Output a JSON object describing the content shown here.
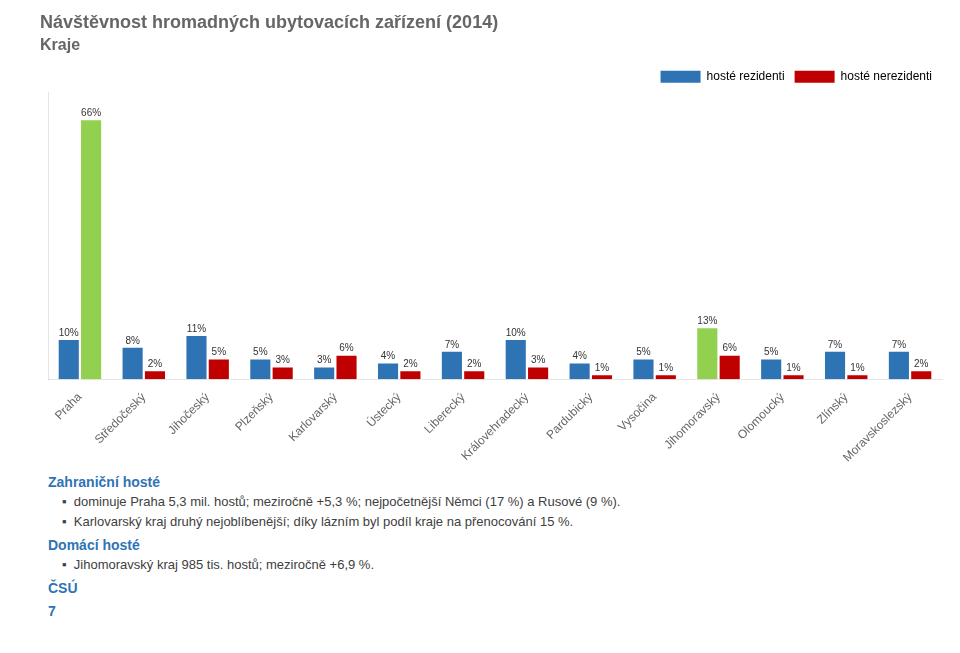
{
  "chart_data": {
    "type": "bar",
    "title": "Návštěvnost hromadných ubytovacích zařízení (2014)",
    "subtitle": "Kraje",
    "categories": [
      "Praha",
      "Středočeský",
      "Jihočeský",
      "Plzeňský",
      "Karlovarský",
      "Ústecký",
      "Liberecký",
      "Královehradecký",
      "Pardubický",
      "Vysočina",
      "Jihomoravský",
      "Olomoucký",
      "Zlínský",
      "Moravskoslezský"
    ],
    "series": [
      {
        "name": "hosté rezidenti",
        "color": "#2E74B5",
        "colors": [
          "#2E74B5",
          "#2E74B5",
          "#2E74B5",
          "#2E74B5",
          "#2E74B5",
          "#2E74B5",
          "#2E74B5",
          "#2E74B5",
          "#2E74B5",
          "#2E74B5",
          "#92D050",
          "#2E74B5",
          "#2E74B5",
          "#2E74B5"
        ],
        "values": [
          10,
          8,
          11,
          5,
          3,
          4,
          7,
          10,
          4,
          5,
          13,
          5,
          7,
          7
        ],
        "value_labels": [
          "10%",
          "8%",
          "11%",
          "5%",
          "3%",
          "4%",
          "7%",
          "10%",
          "4%",
          "5%",
          "13%",
          "5%",
          "7%",
          "7%"
        ]
      },
      {
        "name": "hosté nerezidenti",
        "color": "#C00000",
        "colors": [
          "#92D050",
          "#C00000",
          "#C00000",
          "#C00000",
          "#C00000",
          "#C00000",
          "#C00000",
          "#C00000",
          "#C00000",
          "#C00000",
          "#C00000",
          "#C00000",
          "#C00000",
          "#C00000"
        ],
        "values": [
          66,
          2,
          5,
          3,
          6,
          2,
          2,
          3,
          1,
          1,
          6,
          1,
          1,
          2
        ],
        "value_labels": [
          "66%",
          "2%",
          "5%",
          "3%",
          "6%",
          "2%",
          "2%",
          "3%",
          "1%",
          "1%",
          "6%",
          "1%",
          "1%",
          "2%"
        ]
      }
    ],
    "ylim": [
      0,
      73
    ],
    "grid": false,
    "legend": "upper right",
    "data_labels": true,
    "tick_labels": "x",
    "annotations": [
      "Zahraniční hosté",
      "▪  dominuje Praha 5,3 mil. hostů; meziročně +5,3 %; nejpočetnější Němci (17 %) a Rusové (9 %).",
      "▪  Karlovarský kraj druhý nejoblíbenější; díky lázním byl podíl kraje na přenocování 15 %.",
      "Domácí hosté",
      "▪  Jihomoravský kraj 985 tis. hostů; meziročně +6,9 %.",
      "ČSÚ",
      "7"
    ]
  }
}
